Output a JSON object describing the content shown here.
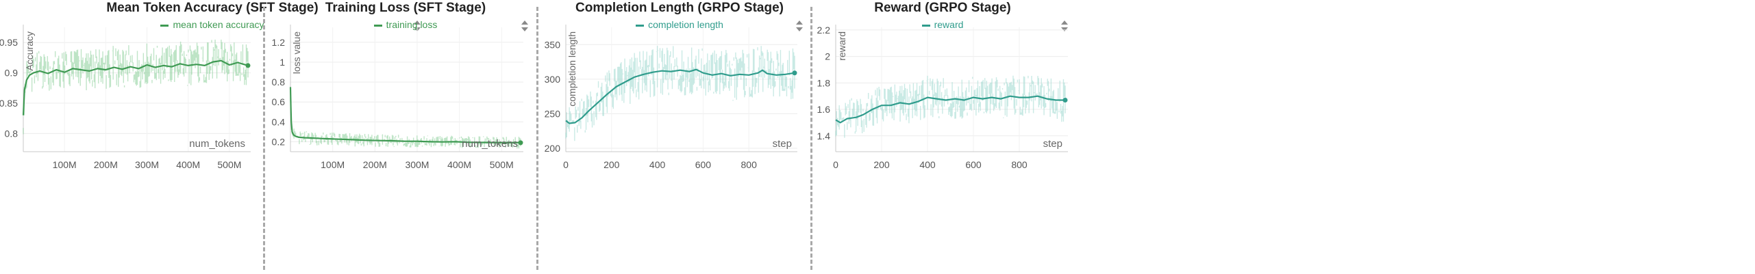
{
  "chart_data": [
    {
      "type": "line",
      "title": "Mean Token Accuracy (SFT Stage)",
      "xlabel": "num_tokens",
      "ylabel": "Accuracy",
      "xlim": [
        0,
        545
      ],
      "ylim": [
        0.77,
        0.975
      ],
      "xticks": [
        100,
        200,
        300,
        400,
        500
      ],
      "xtick_labels": [
        "100M",
        "200M",
        "300M",
        "400M",
        "500M"
      ],
      "yticks": [
        0.8,
        0.85,
        0.9,
        0.95
      ],
      "ytick_labels": [
        "0.8",
        "0.85",
        "0.9",
        "0.95"
      ],
      "grid": true,
      "legend_position": "top",
      "color": "#3f9a53",
      "band_color": "#8ccf9b",
      "series": [
        {
          "name": "mean token accuracy",
          "x": [
            0,
            3,
            8,
            15,
            25,
            40,
            60,
            80,
            100,
            120,
            140,
            160,
            180,
            200,
            220,
            240,
            260,
            280,
            300,
            320,
            340,
            360,
            380,
            400,
            420,
            440,
            460,
            480,
            500,
            520,
            530,
            545
          ],
          "y": [
            0.83,
            0.872,
            0.888,
            0.896,
            0.9,
            0.903,
            0.899,
            0.905,
            0.901,
            0.907,
            0.905,
            0.903,
            0.907,
            0.905,
            0.909,
            0.906,
            0.91,
            0.907,
            0.913,
            0.909,
            0.912,
            0.91,
            0.915,
            0.912,
            0.914,
            0.912,
            0.918,
            0.92,
            0.913,
            0.917,
            0.915,
            0.912
          ],
          "band_lo": [
            0.8,
            0.84,
            0.86,
            0.868,
            0.872,
            0.875,
            0.872,
            0.876,
            0.872,
            0.878,
            0.876,
            0.873,
            0.877,
            0.875,
            0.879,
            0.876,
            0.88,
            0.877,
            0.882,
            0.878,
            0.882,
            0.879,
            0.884,
            0.881,
            0.883,
            0.882,
            0.886,
            0.888,
            0.882,
            0.886,
            0.884,
            0.882
          ],
          "band_hi": [
            0.86,
            0.905,
            0.92,
            0.928,
            0.932,
            0.934,
            0.93,
            0.936,
            0.932,
            0.94,
            0.937,
            0.934,
            0.938,
            0.936,
            0.942,
            0.937,
            0.944,
            0.94,
            0.948,
            0.942,
            0.946,
            0.943,
            0.95,
            0.946,
            0.948,
            0.946,
            0.952,
            0.954,
            0.946,
            0.95,
            0.948,
            0.944
          ]
        }
      ]
    },
    {
      "type": "line",
      "title": "Training Loss (SFT Stage)",
      "xlabel": "num_tokens",
      "ylabel": "loss value",
      "xlim": [
        0,
        545
      ],
      "ylim": [
        0.1,
        1.35
      ],
      "xticks": [
        100,
        200,
        300,
        400,
        500
      ],
      "xtick_labels": [
        "100M",
        "200M",
        "300M",
        "400M",
        "500M"
      ],
      "yticks": [
        0.2,
        0.4,
        0.6,
        0.8,
        1,
        1.2
      ],
      "ytick_labels": [
        "0.2",
        "0.4",
        "0.6",
        "0.8",
        "1",
        "1.2"
      ],
      "grid": true,
      "legend_position": "top",
      "color": "#3f9a53",
      "band_color": "#8ccf9b",
      "series": [
        {
          "name": "training loss",
          "x": [
            0,
            1,
            2,
            4,
            7,
            12,
            20,
            35,
            60,
            90,
            120,
            150,
            180,
            210,
            240,
            270,
            300,
            330,
            360,
            390,
            420,
            450,
            480,
            510,
            530,
            545
          ],
          "y": [
            0.75,
            0.55,
            0.4,
            0.3,
            0.27,
            0.255,
            0.245,
            0.24,
            0.235,
            0.23,
            0.225,
            0.22,
            0.215,
            0.212,
            0.21,
            0.205,
            0.205,
            0.2,
            0.198,
            0.2,
            0.195,
            0.193,
            0.192,
            0.19,
            0.192,
            0.19
          ],
          "band_lo": [
            0.6,
            0.45,
            0.32,
            0.22,
            0.2,
            0.19,
            0.18,
            0.17,
            0.168,
            0.165,
            0.16,
            0.158,
            0.155,
            0.152,
            0.15,
            0.148,
            0.146,
            0.144,
            0.142,
            0.144,
            0.14,
            0.138,
            0.137,
            0.136,
            0.137,
            0.136
          ],
          "band_hi": [
            0.9,
            0.66,
            0.5,
            0.38,
            0.34,
            0.32,
            0.31,
            0.3,
            0.295,
            0.29,
            0.285,
            0.28,
            0.275,
            0.27,
            0.268,
            0.262,
            0.262,
            0.258,
            0.255,
            0.258,
            0.252,
            0.25,
            0.248,
            0.246,
            0.248,
            0.246
          ]
        }
      ]
    },
    {
      "type": "line",
      "title": "Completion Length (GRPO Stage)",
      "xlabel": "step",
      "ylabel": "completion length",
      "xlim": [
        0,
        1000
      ],
      "ylim": [
        195,
        375
      ],
      "xticks": [
        0,
        200,
        400,
        600,
        800
      ],
      "xtick_labels": [
        "0",
        "200",
        "400",
        "600",
        "800"
      ],
      "yticks": [
        200,
        250,
        300,
        350
      ],
      "ytick_labels": [
        "200",
        "250",
        "300",
        "350"
      ],
      "grid": true,
      "legend_position": "top",
      "color": "#2f9c8c",
      "band_color": "#9fd9cf",
      "series": [
        {
          "name": "completion length",
          "x": [
            0,
            15,
            40,
            70,
            100,
            140,
            180,
            220,
            260,
            300,
            340,
            380,
            420,
            460,
            500,
            540,
            570,
            600,
            640,
            680,
            720,
            760,
            800,
            840,
            860,
            880,
            920,
            960,
            1000
          ],
          "y": [
            240,
            236,
            237,
            244,
            254,
            266,
            278,
            289,
            296,
            303,
            307,
            310,
            312,
            311,
            313,
            311,
            314,
            309,
            306,
            308,
            305,
            307,
            306,
            309,
            313,
            308,
            306,
            307,
            309
          ],
          "band_lo": [
            215,
            212,
            212,
            218,
            228,
            238,
            248,
            258,
            264,
            270,
            274,
            276,
            278,
            278,
            280,
            278,
            280,
            276,
            272,
            274,
            271,
            273,
            272,
            275,
            278,
            274,
            272,
            273,
            275
          ],
          "band_hi": [
            265,
            260,
            262,
            270,
            282,
            296,
            308,
            320,
            328,
            336,
            340,
            344,
            346,
            344,
            347,
            344,
            348,
            342,
            340,
            342,
            339,
            341,
            340,
            343,
            347,
            342,
            340,
            341,
            343
          ]
        }
      ]
    },
    {
      "type": "line",
      "title": "Reward (GRPO Stage)",
      "xlabel": "step",
      "ylabel": "reward",
      "xlim": [
        0,
        1000
      ],
      "ylim": [
        1.28,
        2.22
      ],
      "xticks": [
        0,
        200,
        400,
        600,
        800
      ],
      "xtick_labels": [
        "0",
        "200",
        "400",
        "600",
        "800"
      ],
      "yticks": [
        1.4,
        1.6,
        1.8,
        2,
        2.2
      ],
      "ytick_labels": [
        "1.4",
        "1.6",
        "1.8",
        "2",
        "2.2"
      ],
      "grid": true,
      "legend_position": "top",
      "color": "#2f9c8c",
      "band_color": "#9fd9cf",
      "series": [
        {
          "name": "reward",
          "x": [
            0,
            20,
            50,
            90,
            120,
            160,
            200,
            240,
            280,
            320,
            360,
            400,
            440,
            480,
            520,
            560,
            600,
            640,
            680,
            720,
            760,
            800,
            840,
            880,
            920,
            960,
            1000
          ],
          "y": [
            1.52,
            1.5,
            1.53,
            1.54,
            1.56,
            1.6,
            1.63,
            1.63,
            1.65,
            1.64,
            1.66,
            1.69,
            1.68,
            1.67,
            1.68,
            1.67,
            1.69,
            1.68,
            1.69,
            1.68,
            1.7,
            1.69,
            1.69,
            1.7,
            1.68,
            1.67,
            1.67
          ],
          "band_lo": [
            1.4,
            1.38,
            1.4,
            1.42,
            1.43,
            1.46,
            1.5,
            1.5,
            1.52,
            1.5,
            1.52,
            1.55,
            1.54,
            1.53,
            1.54,
            1.53,
            1.55,
            1.54,
            1.55,
            1.54,
            1.56,
            1.55,
            1.55,
            1.56,
            1.54,
            1.52,
            1.52
          ],
          "band_hi": [
            1.65,
            1.63,
            1.67,
            1.68,
            1.7,
            1.74,
            1.77,
            1.77,
            1.79,
            1.78,
            1.81,
            1.84,
            1.83,
            1.82,
            1.83,
            1.82,
            1.84,
            1.83,
            1.84,
            1.83,
            1.85,
            1.84,
            1.84,
            1.85,
            1.83,
            1.82,
            1.82
          ]
        }
      ]
    }
  ]
}
